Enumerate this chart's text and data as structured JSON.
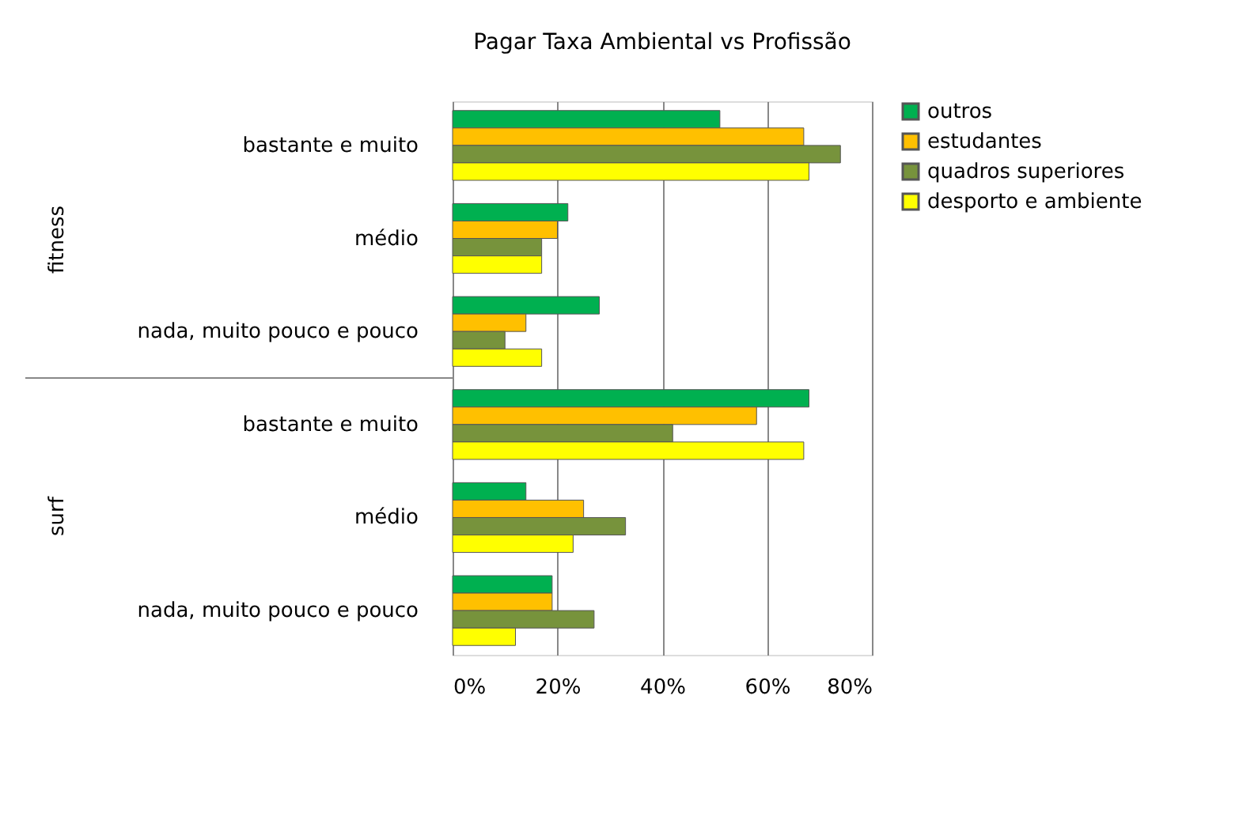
{
  "chart_data": {
    "type": "bar",
    "orientation": "horizontal",
    "title": "Pagar Taxa Ambiental vs Profissão",
    "categories": [
      "bastante e muito",
      "médio",
      "nada, muito pouco e pouco",
      "bastante e muito",
      "médio",
      "nada, muito pouco e pouco"
    ],
    "annotations": [
      "fitness",
      "surf"
    ],
    "series": [
      {
        "name": "outros",
        "color": "#00b050",
        "values": [
          51,
          22,
          28,
          68,
          14,
          19
        ]
      },
      {
        "name": "estudantes",
        "color": "#ffc000",
        "values": [
          67,
          20,
          14,
          58,
          25,
          19
        ]
      },
      {
        "name": "quadros superiores",
        "color": "#77933c",
        "values": [
          74,
          17,
          10,
          42,
          33,
          27
        ]
      },
      {
        "name": "desporto e ambiente",
        "color": "#ffff00",
        "values": [
          68,
          17,
          17,
          67,
          23,
          12
        ]
      }
    ],
    "xlim": [
      0,
      80
    ],
    "xticks": [
      {
        "value": 0,
        "label": "0%"
      },
      {
        "value": 20,
        "label": "20%"
      },
      {
        "value": 40,
        "label": "40%"
      },
      {
        "value": 60,
        "label": "60%"
      },
      {
        "value": 80,
        "label": "80%"
      }
    ],
    "grid": "x",
    "legend": "right"
  }
}
